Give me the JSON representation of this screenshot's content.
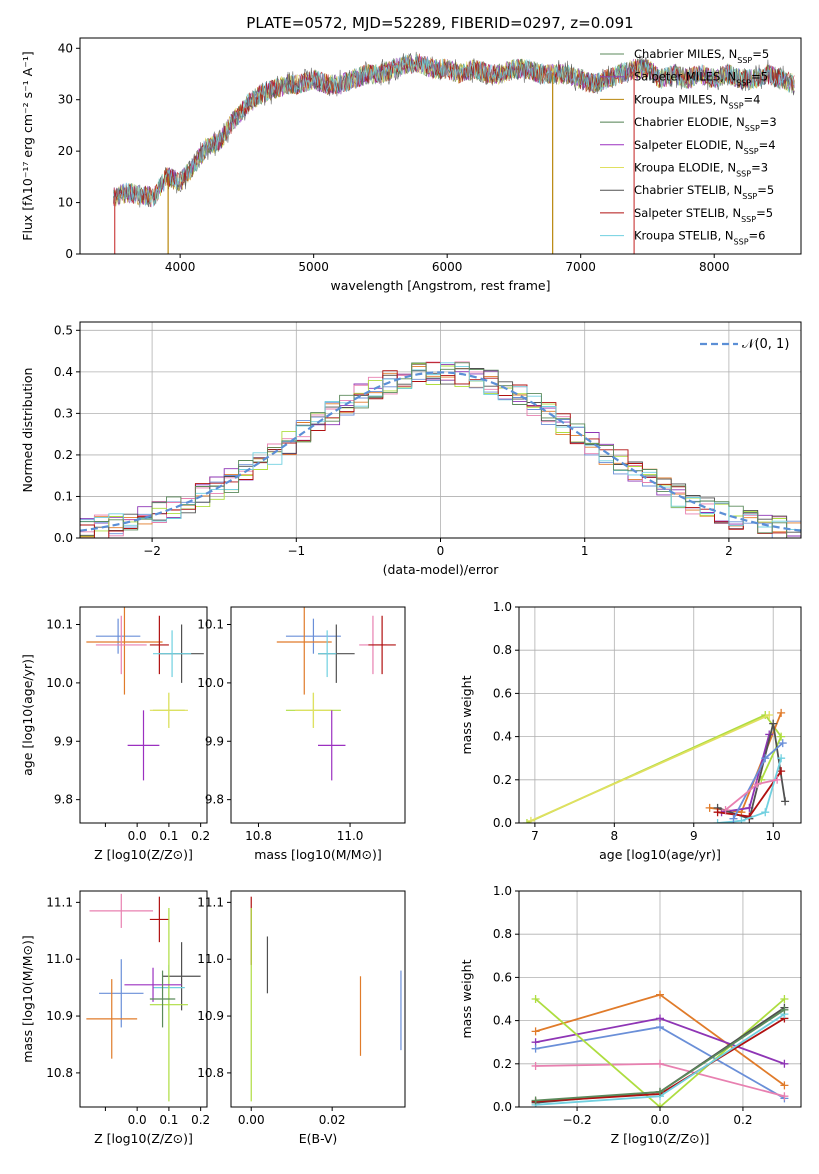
{
  "figure_title": "PLATE=0572, MJD=52289, FIBERID=0297, z=0.091",
  "palette": [
    "#4e9a06",
    "#8e35b5",
    "#d2691e",
    "#5a8a5a",
    "#9b30b0",
    "#e6e65a",
    "#555555",
    "#b22222",
    "#6fd6e0"
  ],
  "models": [
    {
      "label": "Chabrier MILES, N",
      "sub": "SSP",
      "suffix": "=5",
      "color": "#5b8a5b"
    },
    {
      "label": "Salpeter MILES, N",
      "sub": "SSP",
      "suffix": "=5",
      "color": "#8e44ad"
    },
    {
      "label": "Kroupa MILES, N",
      "sub": "SSP",
      "suffix": "=4",
      "color": "#b8860b"
    },
    {
      "label": "Chabrier ELODIE, N",
      "sub": "SSP",
      "suffix": "=3",
      "color": "#4f7f4f"
    },
    {
      "label": "Salpeter ELODIE, N",
      "sub": "SSP",
      "suffix": "=4",
      "color": "#9b30c0"
    },
    {
      "label": "Kroupa ELODIE, N",
      "sub": "SSP",
      "suffix": "=3",
      "color": "#e0e060"
    },
    {
      "label": "Chabrier STELIB, N",
      "sub": "SSP",
      "suffix": "=5",
      "color": "#505050"
    },
    {
      "label": "Salpeter STELIB, N",
      "sub": "SSP",
      "suffix": "=5",
      "color": "#b01010"
    },
    {
      "label": "Kroupa STELIB, N",
      "sub": "SSP",
      "suffix": "=6",
      "color": "#70d0e0"
    }
  ],
  "chart_data": [
    {
      "id": "spectrum",
      "type": "line",
      "xlabel": "wavelength [Angstrom, rest frame]",
      "ylabel": "Flux [fλ10⁻¹⁷ erg cm⁻² s⁻¹ A⁻¹]",
      "xlim": [
        3250,
        8650
      ],
      "ylim": [
        0,
        42
      ],
      "xticks": [
        4000,
        5000,
        6000,
        7000,
        8000
      ],
      "yticks": [
        0,
        10,
        20,
        30,
        40
      ],
      "continuum": [
        [
          3500,
          11
        ],
        [
          3600,
          12
        ],
        [
          3800,
          11
        ],
        [
          3900,
          15
        ],
        [
          4000,
          14
        ],
        [
          4100,
          17
        ],
        [
          4200,
          21
        ],
        [
          4300,
          22
        ],
        [
          4400,
          26
        ],
        [
          4500,
          29
        ],
        [
          4600,
          31
        ],
        [
          4700,
          32
        ],
        [
          4800,
          33
        ],
        [
          4900,
          33
        ],
        [
          5000,
          34
        ],
        [
          5100,
          33
        ],
        [
          5200,
          33
        ],
        [
          5300,
          34
        ],
        [
          5400,
          35
        ],
        [
          5500,
          35
        ],
        [
          5600,
          36
        ],
        [
          5700,
          37
        ],
        [
          5800,
          37
        ],
        [
          5900,
          36
        ],
        [
          6000,
          36
        ],
        [
          6100,
          35
        ],
        [
          6200,
          36
        ],
        [
          6300,
          35
        ],
        [
          6400,
          35
        ],
        [
          6500,
          36
        ],
        [
          6600,
          36
        ],
        [
          6700,
          35
        ],
        [
          6800,
          35
        ],
        [
          6900,
          35
        ],
        [
          7000,
          34
        ],
        [
          7100,
          33
        ],
        [
          7200,
          34
        ],
        [
          7300,
          35
        ],
        [
          7400,
          36
        ],
        [
          7500,
          36
        ],
        [
          7600,
          34
        ],
        [
          7700,
          35
        ],
        [
          7800,
          34
        ],
        [
          7900,
          35
        ],
        [
          8000,
          34
        ],
        [
          8100,
          35
        ],
        [
          8200,
          34
        ],
        [
          8300,
          34
        ],
        [
          8400,
          35
        ],
        [
          8600,
          33
        ]
      ],
      "drops": [
        [
          3510,
          0,
          "#cc4444"
        ],
        [
          3910,
          0,
          "#b8860b"
        ],
        [
          6790,
          0,
          "#b8860b"
        ],
        [
          7400,
          0,
          "#cc4444"
        ]
      ]
    },
    {
      "id": "residuals",
      "type": "histogram",
      "xlabel": "(data-model)/error",
      "ylabel": "Normed distribution",
      "xlim": [
        -2.5,
        2.5
      ],
      "ylim": [
        0,
        0.52
      ],
      "xticks": [
        -2,
        -1,
        0,
        1,
        2
      ],
      "yticks": [
        0.0,
        0.1,
        0.2,
        0.3,
        0.4,
        0.5
      ],
      "legend": "N(0,1)"
    },
    {
      "id": "age_vs_Z",
      "type": "scatter",
      "xlabel": "Z [log10(Z/Z⊙)]",
      "ylabel": "age  [log10(age/yr)]",
      "xlim": [
        -0.18,
        0.22
      ],
      "ylim": [
        9.76,
        10.13
      ],
      "xticks": [
        -0.1,
        0.0,
        0.1,
        0.2
      ],
      "xticklabels": [
        "",
        "0.0",
        "0.1",
        "0.2"
      ],
      "yticks": [
        9.8,
        9.9,
        10.0,
        10.1
      ],
      "points": [
        [
          -0.06,
          10.08,
          0.07,
          0.03,
          "#6a8fd8"
        ],
        [
          -0.04,
          10.07,
          0.12,
          0.09,
          "#e07b2a"
        ],
        [
          -0.05,
          10.065,
          0.08,
          0.05,
          "#e880b0"
        ],
        [
          0.07,
          10.065,
          0.03,
          0.05,
          "#b01010"
        ],
        [
          0.14,
          10.05,
          0.07,
          0.05,
          "#505050"
        ],
        [
          0.11,
          10.05,
          0.06,
          0.04,
          "#70d0e0"
        ],
        [
          0.1,
          9.953,
          0.05,
          0.03,
          "#aedd40"
        ],
        [
          0.1,
          9.953,
          0.06,
          0.03,
          "#e0e060"
        ],
        [
          0.02,
          9.893,
          0.05,
          0.06,
          "#9b30c0"
        ]
      ]
    },
    {
      "id": "age_vs_mass",
      "type": "scatter",
      "xlabel": "mass [log10(M/M⊙)]",
      "ylabel": "",
      "xlim": [
        10.74,
        11.12
      ],
      "ylim": [
        9.76,
        10.13
      ],
      "xticks": [
        10.8,
        11.0
      ],
      "yticks": [
        9.8,
        9.9,
        10.0,
        10.1
      ],
      "points": [
        [
          10.92,
          10.08,
          0.06,
          0.03,
          "#6a8fd8"
        ],
        [
          10.9,
          10.07,
          0.06,
          0.09,
          "#e07b2a"
        ],
        [
          11.05,
          10.065,
          0.03,
          0.05,
          "#e880b0"
        ],
        [
          11.07,
          10.065,
          0.03,
          0.05,
          "#b01010"
        ],
        [
          10.97,
          10.05,
          0.04,
          0.05,
          "#505050"
        ],
        [
          10.95,
          10.05,
          0.02,
          0.04,
          "#70d0e0"
        ],
        [
          10.92,
          9.953,
          0.06,
          0.03,
          "#aedd40"
        ],
        [
          10.92,
          9.953,
          0.04,
          0.03,
          "#e0e060"
        ],
        [
          10.96,
          9.893,
          0.03,
          0.06,
          "#9b30c0"
        ]
      ]
    },
    {
      "id": "weight_vs_age",
      "type": "line",
      "xlabel": "age  [log10(age/yr)]",
      "ylabel": "mass weight",
      "xlim": [
        6.8,
        10.35
      ],
      "ylim": [
        0,
        1
      ],
      "xticks": [
        7,
        8,
        9,
        10
      ],
      "yticks": [
        0.0,
        0.2,
        0.4,
        0.6,
        0.8,
        1.0
      ]
    },
    {
      "id": "mass_vs_Z",
      "type": "scatter",
      "xlabel": "Z [log10(Z/Z⊙)]",
      "ylabel": "mass [log10(M/M⊙)]",
      "xlim": [
        -0.18,
        0.22
      ],
      "ylim": [
        10.74,
        11.12
      ],
      "xticks": [
        -0.1,
        0.0,
        0.1,
        0.2
      ],
      "xticklabels": [
        "",
        "0.0",
        "0.1",
        "0.2"
      ],
      "yticks": [
        10.8,
        10.9,
        11.0,
        11.1
      ],
      "points": [
        [
          -0.05,
          10.94,
          0.07,
          0.06,
          "#6a8fd8"
        ],
        [
          -0.08,
          10.895,
          0.08,
          0.07,
          "#e07b2a"
        ],
        [
          -0.05,
          11.085,
          0.1,
          0.03,
          "#e880b0"
        ],
        [
          0.07,
          11.07,
          0.03,
          0.04,
          "#b01010"
        ],
        [
          0.14,
          10.97,
          0.06,
          0.06,
          "#505050"
        ],
        [
          0.1,
          10.95,
          0.05,
          0.04,
          "#70d0e0"
        ],
        [
          0.1,
          10.92,
          0.06,
          0.17,
          "#aedd40"
        ],
        [
          0.05,
          10.955,
          0.09,
          0.03,
          "#9b30c0"
        ],
        [
          0.08,
          10.93,
          0.04,
          0.05,
          "#5b8a5b"
        ]
      ]
    },
    {
      "id": "mass_vs_ebv",
      "type": "scatter",
      "xlabel": "E(B-V)",
      "ylabel": "",
      "xlim": [
        -0.005,
        0.038
      ],
      "ylim": [
        10.74,
        11.12
      ],
      "xticks": [
        0.0,
        0.02
      ],
      "yticks": [
        10.8,
        10.9,
        11.0,
        11.1
      ],
      "points": [
        [
          0.0,
          11.05,
          0,
          0.06,
          "#b01010"
        ],
        [
          0.0,
          10.92,
          0,
          0.17,
          "#aedd40"
        ],
        [
          0.004,
          10.99,
          0,
          0.05,
          "#505050"
        ],
        [
          0.027,
          10.9,
          0,
          0.07,
          "#e07b2a"
        ],
        [
          0.037,
          10.91,
          0,
          0.07,
          "#6a8fd8"
        ]
      ]
    },
    {
      "id": "weight_vs_Z",
      "type": "line",
      "xlabel": "Z [log10(Z/Z⊙)]",
      "ylabel": "mass weight",
      "xlim": [
        -0.34,
        0.34
      ],
      "ylim": [
        0,
        1
      ],
      "xticks": [
        -0.2,
        0.0,
        0.2
      ],
      "yticks": [
        0.0,
        0.2,
        0.4,
        0.6,
        0.8,
        1.0
      ],
      "series": [
        {
          "color": "#e07b2a",
          "points": [
            [
              -0.3,
              0.35
            ],
            [
              0.0,
              0.52
            ],
            [
              0.3,
              0.1
            ]
          ]
        },
        {
          "color": "#8e35b5",
          "points": [
            [
              -0.3,
              0.3
            ],
            [
              0.0,
              0.41
            ],
            [
              0.3,
              0.2
            ]
          ]
        },
        {
          "color": "#6a8fd8",
          "points": [
            [
              -0.3,
              0.27
            ],
            [
              0.0,
              0.37
            ],
            [
              0.3,
              0.04
            ]
          ]
        },
        {
          "color": "#e880b0",
          "points": [
            [
              -0.3,
              0.19
            ],
            [
              0.0,
              0.2
            ],
            [
              0.3,
              0.05
            ]
          ]
        },
        {
          "color": "#aedd40",
          "points": [
            [
              -0.3,
              0.5
            ],
            [
              0.0,
              0.0
            ],
            [
              0.3,
              0.5
            ]
          ]
        },
        {
          "color": "#505050",
          "points": [
            [
              -0.3,
              0.02
            ],
            [
              0.0,
              0.07
            ],
            [
              0.3,
              0.46
            ]
          ]
        },
        {
          "color": "#b01010",
          "points": [
            [
              -0.3,
              0.025
            ],
            [
              0.0,
              0.06
            ],
            [
              0.3,
              0.41
            ]
          ]
        },
        {
          "color": "#70d0e0",
          "points": [
            [
              -0.3,
              0.01
            ],
            [
              0.0,
              0.05
            ],
            [
              0.3,
              0.43
            ]
          ]
        },
        {
          "color": "#5b8a5b",
          "points": [
            [
              -0.3,
              0.03
            ],
            [
              0.0,
              0.07
            ],
            [
              0.3,
              0.45
            ]
          ]
        }
      ]
    }
  ]
}
